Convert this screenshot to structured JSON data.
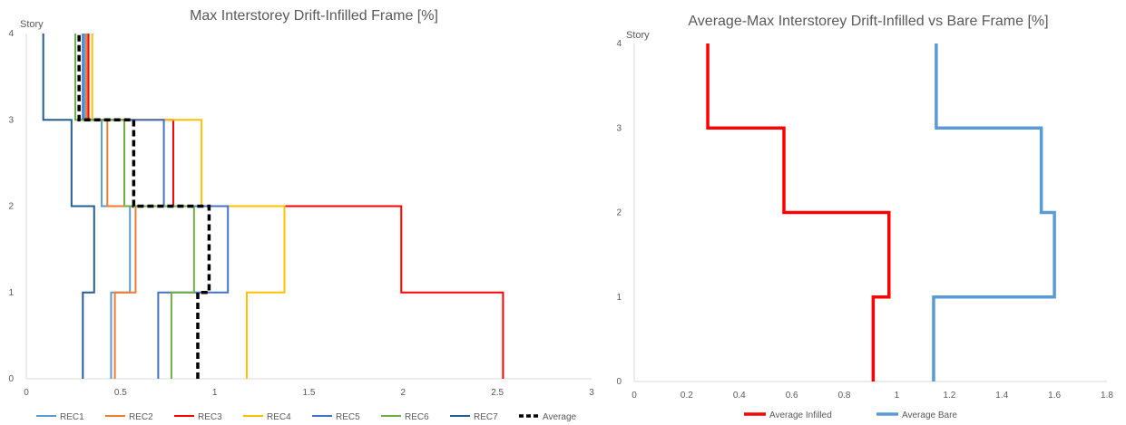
{
  "chart_data": [
    {
      "type": "line",
      "title": "Max Interstorey Drift-Infilled Frame [%]",
      "ylabel": "Story",
      "xlabel": "",
      "xlim": [
        0,
        3
      ],
      "ylim": [
        0,
        4
      ],
      "xticks": [
        "0",
        "0.5",
        "1",
        "1.5",
        "2",
        "2.5",
        "3"
      ],
      "yticks": [
        "0",
        "1",
        "2",
        "3",
        "4"
      ],
      "legend_position": "bottom",
      "grid": false,
      "stories": [
        0,
        1,
        2,
        3,
        4
      ],
      "series": [
        {
          "name": "REC1",
          "color": "#5b9bd5",
          "dash": false,
          "values": [
            0.45,
            0.55,
            0.4,
            0.31
          ]
        },
        {
          "name": "REC2",
          "color": "#ed7d31",
          "dash": false,
          "values": [
            0.47,
            0.58,
            0.43,
            0.32
          ]
        },
        {
          "name": "REC3",
          "color": "#ff0000",
          "dash": false,
          "values": [
            2.53,
            1.99,
            0.78,
            0.33
          ]
        },
        {
          "name": "REC4",
          "color": "#ffc000",
          "dash": false,
          "values": [
            1.17,
            1.37,
            0.93,
            0.35
          ]
        },
        {
          "name": "REC5",
          "color": "#4472c4",
          "dash": false,
          "values": [
            0.7,
            1.07,
            0.73,
            0.3
          ]
        },
        {
          "name": "REC6",
          "color": "#70ad47",
          "dash": false,
          "values": [
            0.77,
            0.89,
            0.52,
            0.26
          ]
        },
        {
          "name": "REC7",
          "color": "#255e91",
          "dash": false,
          "values": [
            0.3,
            0.36,
            0.24,
            0.09
          ]
        },
        {
          "name": "Average",
          "color": "#000000",
          "dash": true,
          "values": [
            0.91,
            0.97,
            0.57,
            0.28
          ]
        }
      ]
    },
    {
      "type": "line",
      "title": "Average-Max Interstorey Drift-Infilled vs Bare Frame [%]",
      "ylabel": "Story",
      "xlabel": "",
      "xlim": [
        0,
        1.8
      ],
      "ylim": [
        0,
        4
      ],
      "xticks": [
        "0",
        "0.2",
        "0.4",
        "0.6",
        "0.8",
        "1",
        "1.2",
        "1.4",
        "1.6",
        "1.8"
      ],
      "yticks": [
        "0",
        "1",
        "2",
        "3",
        "4"
      ],
      "legend_position": "bottom",
      "grid": false,
      "stories": [
        0,
        1,
        2,
        3,
        4
      ],
      "series": [
        {
          "name": "Average Infilled",
          "color": "#ff0000",
          "dash": false,
          "values": [
            0.91,
            0.97,
            0.57,
            0.28
          ]
        },
        {
          "name": "Average Bare",
          "color": "#5b9bd5",
          "dash": false,
          "values": [
            1.14,
            1.6,
            1.55,
            1.15
          ]
        }
      ]
    }
  ]
}
